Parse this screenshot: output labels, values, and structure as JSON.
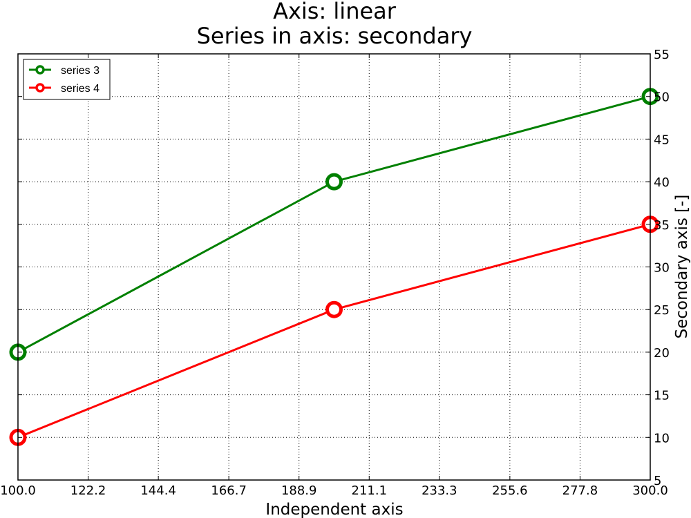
{
  "chart_data": {
    "type": "line",
    "title": [
      "Axis: linear",
      "Series in axis: secondary"
    ],
    "xlabel": "Independent axis",
    "ylabel": "Secondary axis [-]",
    "y_axis_side": "right",
    "xlim": [
      100,
      300
    ],
    "ylim": [
      5,
      55
    ],
    "x_ticks": [
      "100.0",
      "122.2",
      "144.4",
      "166.7",
      "188.9",
      "211.1",
      "233.3",
      "255.6",
      "277.8",
      "300.0"
    ],
    "y_ticks": [
      "5",
      "10",
      "15",
      "20",
      "25",
      "30",
      "35",
      "40",
      "45",
      "50",
      "55"
    ],
    "grid": true,
    "legend_position": "top-left",
    "series": [
      {
        "name": "series 3",
        "color": "#008000",
        "marker": "circle",
        "x": [
          100,
          200,
          300
        ],
        "y": [
          20,
          40,
          50
        ]
      },
      {
        "name": "series 4",
        "color": "#ff0000",
        "marker": "circle",
        "x": [
          100,
          200,
          300
        ],
        "y": [
          10,
          25,
          35
        ]
      }
    ]
  }
}
